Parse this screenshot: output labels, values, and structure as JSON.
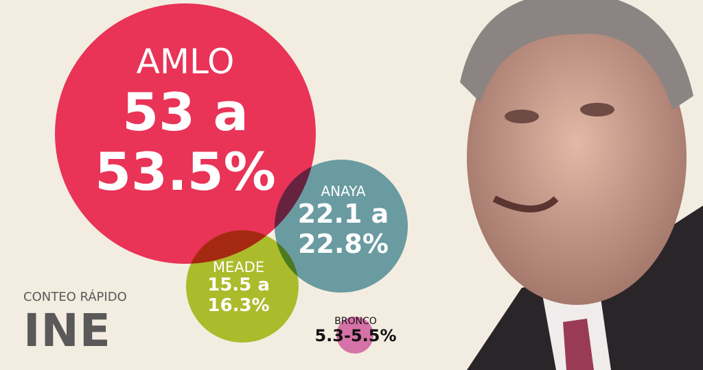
{
  "candidates": [
    {
      "name": "AMLO",
      "range_line1": "53 a",
      "range_line2": "53.5%",
      "color": "#e8294f"
    },
    {
      "name": "ANAYA",
      "range_line1": "22.1 a",
      "range_line2": "22.8%",
      "color": "#6fa7b7"
    },
    {
      "name": "MEADE",
      "range_line1": "15.5 a",
      "range_line2": "16.3%",
      "color": "#b5c930"
    },
    {
      "name": "BRONCO",
      "range": "5.3-5.5%",
      "color": "#e07bbd"
    }
  ],
  "source": {
    "subtitle": "CONTEO RÁPIDO",
    "title": "INE"
  }
}
